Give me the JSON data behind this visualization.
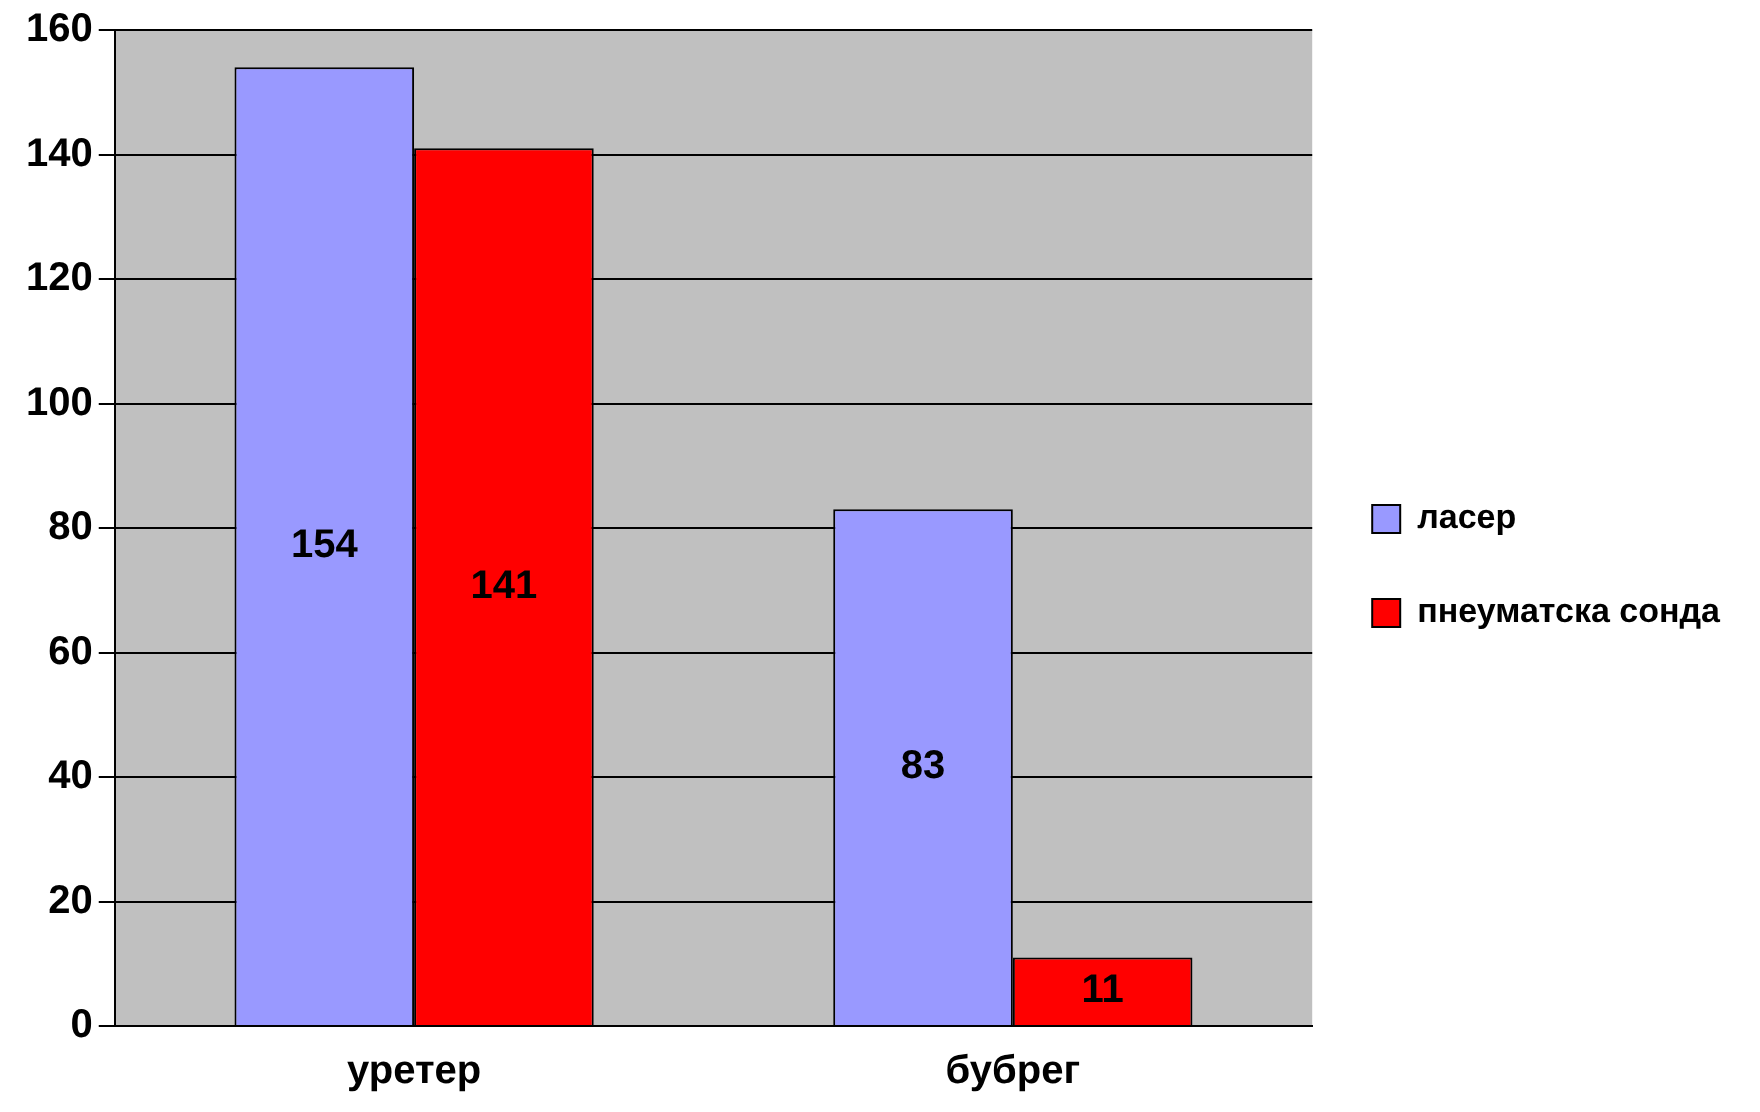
{
  "chart_data": {
    "type": "bar",
    "categories": [
      "уретер",
      "бубрег"
    ],
    "series": [
      {
        "name": "ласер",
        "color": "#9999ff",
        "values": [
          154,
          83
        ]
      },
      {
        "name": "пнеуматска сонда",
        "color": "#ff0000",
        "values": [
          141,
          11
        ]
      }
    ],
    "ylim": [
      0,
      160
    ],
    "yticks": [
      0,
      20,
      40,
      60,
      80,
      100,
      120,
      140,
      160
    ],
    "grid": "y",
    "legend": "right",
    "data_labels": true
  }
}
